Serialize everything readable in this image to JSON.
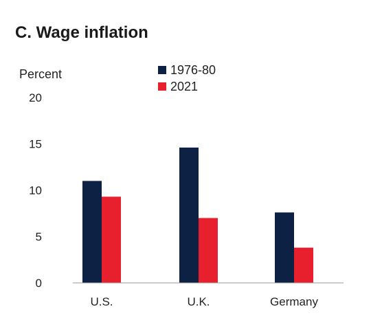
{
  "chart_data": {
    "type": "bar",
    "title": "C. Wage inflation",
    "ylabel": "Percent",
    "xlabel": "",
    "categories": [
      "U.S.",
      "U.K.",
      "Germany"
    ],
    "series": [
      {
        "name": "1976-80",
        "color": "#0d2145",
        "values": [
          11.0,
          14.6,
          7.6
        ]
      },
      {
        "name": "2021",
        "color": "#e8202d",
        "values": [
          9.3,
          7.0,
          3.8
        ]
      }
    ],
    "ylim": [
      0,
      20
    ],
    "yticks": [
      0,
      5,
      10,
      15,
      20
    ],
    "legend": "top",
    "grid": false
  }
}
